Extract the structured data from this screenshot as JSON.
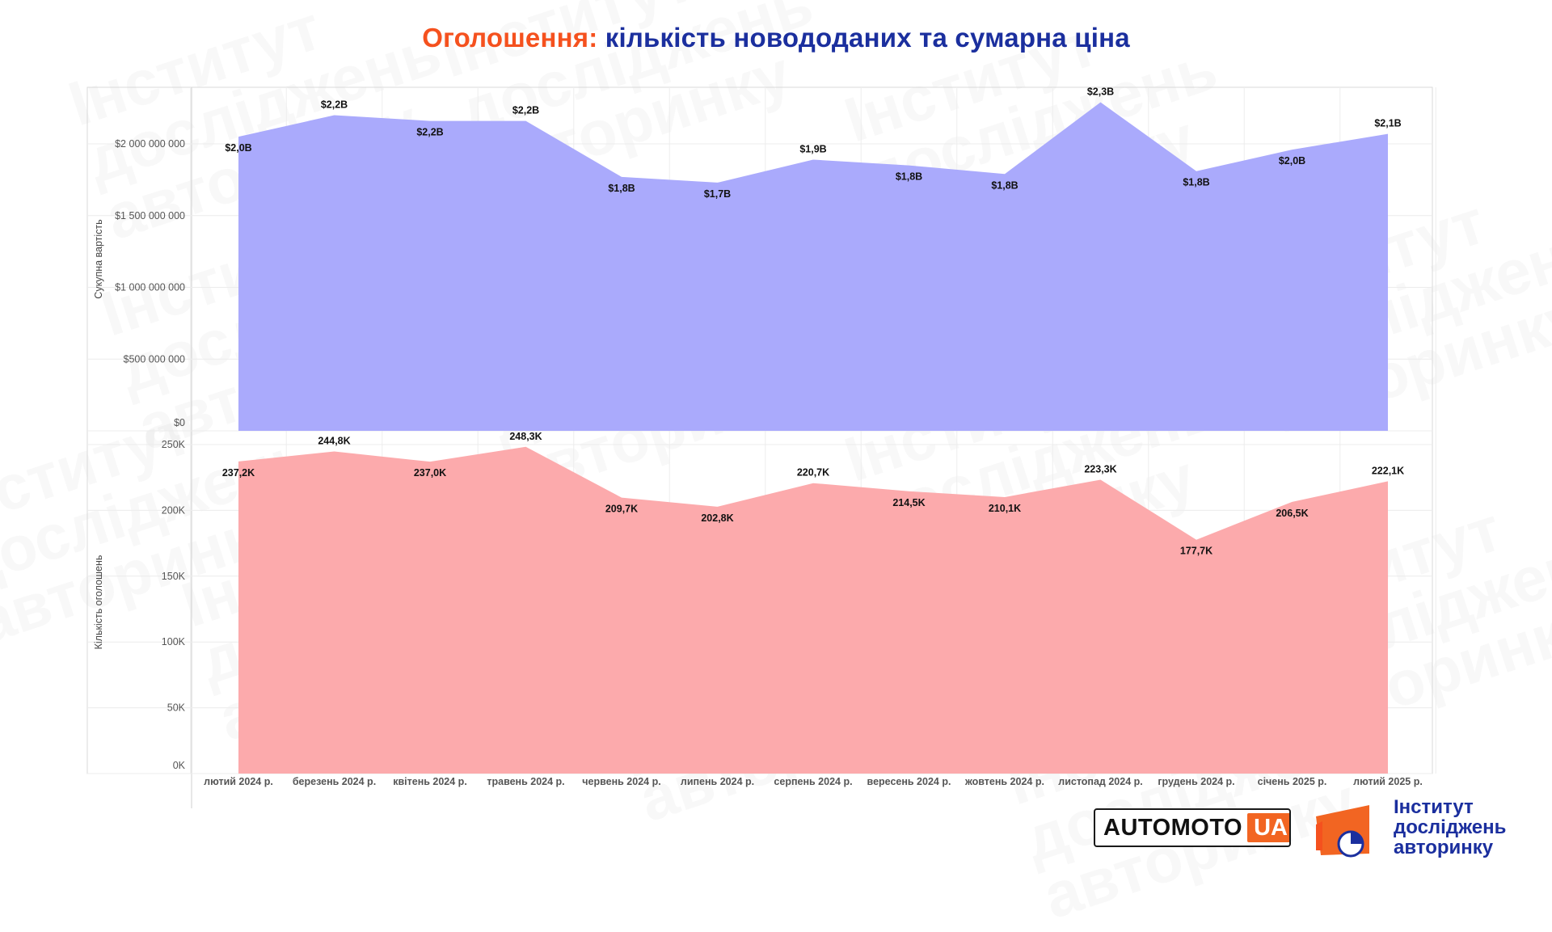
{
  "title": {
    "prefix": "Оголошення:",
    "main": "кількість новододаних та сумарна ціна"
  },
  "watermark": {
    "lines": [
      "Інститут",
      "досліджень",
      "авторинку"
    ]
  },
  "chart_data": [
    {
      "type": "area",
      "ylabel": "Сукупна вартість",
      "ylim": [
        0,
        2400000000
      ],
      "yticks": [
        {
          "value": 0,
          "label": "$0"
        },
        {
          "value": 500000000,
          "label": "$500 000 000"
        },
        {
          "value": 1000000000,
          "label": "$1 000 000 000"
        },
        {
          "value": 1500000000,
          "label": "$1 500 000 000"
        },
        {
          "value": 2000000000,
          "label": "$2 000 000 000"
        }
      ],
      "categories": [
        "лютий 2024 р.",
        "березень 2024 р.",
        "квітень 2024 р.",
        "травень 2024 р.",
        "червень 2024 р.",
        "липень 2024 р.",
        "серпень 2024 р.",
        "вересень 2024 р.",
        "жовтень 2024 р.",
        "листопад 2024 р.",
        "грудень 2024 р.",
        "січень 2025 р.",
        "лютий 2025 р."
      ],
      "values": [
        2050000000,
        2200000000,
        2160000000,
        2160000000,
        1770000000,
        1730000000,
        1890000000,
        1850000000,
        1790000000,
        2290000000,
        1810000000,
        1960000000,
        2070000000
      ],
      "labels": [
        "$2,0B",
        "$2,2B",
        "$2,2B",
        "$2,2B",
        "$1,8B",
        "$1,7B",
        "$1,9B",
        "$1,8B",
        "$1,8B",
        "$2,3B",
        "$1,8B",
        "$2,0B",
        "$2,1B"
      ],
      "color": "#aaaafc",
      "grid": true
    },
    {
      "type": "area",
      "ylabel": "Кількість оголошень",
      "ylim": [
        0,
        250000
      ],
      "yticks": [
        {
          "value": 0,
          "label": "0K"
        },
        {
          "value": 50000,
          "label": "50K"
        },
        {
          "value": 100000,
          "label": "100K"
        },
        {
          "value": 150000,
          "label": "150K"
        },
        {
          "value": 200000,
          "label": "200K"
        },
        {
          "value": 250000,
          "label": "250K"
        }
      ],
      "categories": [
        "лютий 2024 р.",
        "березень 2024 р.",
        "квітень 2024 р.",
        "травень 2024 р.",
        "червень 2024 р.",
        "липень 2024 р.",
        "серпень 2024 р.",
        "вересень 2024 р.",
        "жовтень 2024 р.",
        "листопад 2024 р.",
        "грудень 2024 р.",
        "січень 2025 р.",
        "лютий 2025 р."
      ],
      "values": [
        237200,
        244800,
        237000,
        248300,
        209700,
        202800,
        220700,
        214500,
        210100,
        223300,
        177700,
        206500,
        222100
      ],
      "labels": [
        "237,2K",
        "244,8K",
        "237,0K",
        "248,3K",
        "209,7K",
        "202,8K",
        "220,7K",
        "214,5K",
        "210,1K",
        "223,3K",
        "177,7K",
        "206,5K",
        "222,1K"
      ],
      "color": "#fcaaac",
      "grid": true
    }
  ],
  "logos": {
    "automoto_main": "AUTOMOTO",
    "automoto_suffix": "UA",
    "institute_lines": [
      "Інститут",
      "досліджень",
      "авторинку"
    ]
  }
}
